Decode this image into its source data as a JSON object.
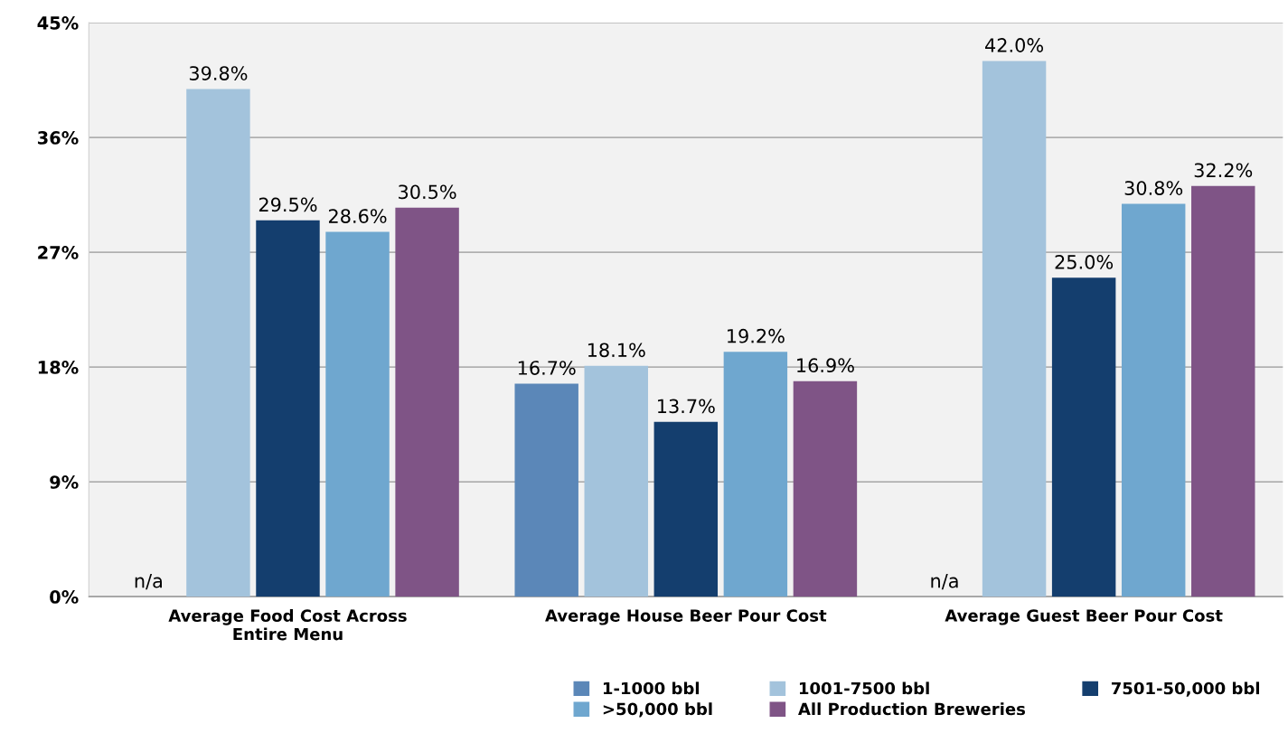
{
  "chart_data": {
    "type": "bar",
    "categories": [
      "Average Food Cost Across\nEntire Menu",
      "Average House Beer Pour Cost",
      "Average Guest Beer Pour Cost"
    ],
    "series": [
      {
        "name": "1-1000 bbl",
        "color": "#5b87b8",
        "values": [
          null,
          16.7,
          null
        ],
        "value_labels": [
          "n/a",
          "16.7%",
          "n/a"
        ]
      },
      {
        "name": "1001-7500 bbl",
        "color": "#a3c3dc",
        "values": [
          39.8,
          18.1,
          42.0
        ],
        "value_labels": [
          "39.8%",
          "18.1%",
          "42.0%"
        ]
      },
      {
        "name": "7501-50,000 bbl",
        "color": "#143e6e",
        "values": [
          29.5,
          13.7,
          25.0
        ],
        "value_labels": [
          "29.5%",
          "13.7%",
          "25.0%"
        ]
      },
      {
        "name": ">50,000 bbl",
        "color": "#6fa7cf",
        "values": [
          28.6,
          19.2,
          30.8
        ],
        "value_labels": [
          "28.6%",
          "19.2%",
          "30.8%"
        ]
      },
      {
        "name": "All Production Breweries",
        "color": "#7f5486",
        "values": [
          30.5,
          16.9,
          32.2
        ],
        "value_labels": [
          "30.5%",
          "16.9%",
          "32.2%"
        ]
      }
    ],
    "ylim": [
      0,
      45
    ],
    "yticks": [
      {
        "value": 0,
        "label": "0%"
      },
      {
        "value": 9,
        "label": "9%"
      },
      {
        "value": 18,
        "label": "18%"
      },
      {
        "value": 27,
        "label": "27%"
      },
      {
        "value": 36,
        "label": "36%"
      },
      {
        "value": 45,
        "label": "45%"
      }
    ],
    "grid": "y",
    "legend": "bottom right"
  }
}
